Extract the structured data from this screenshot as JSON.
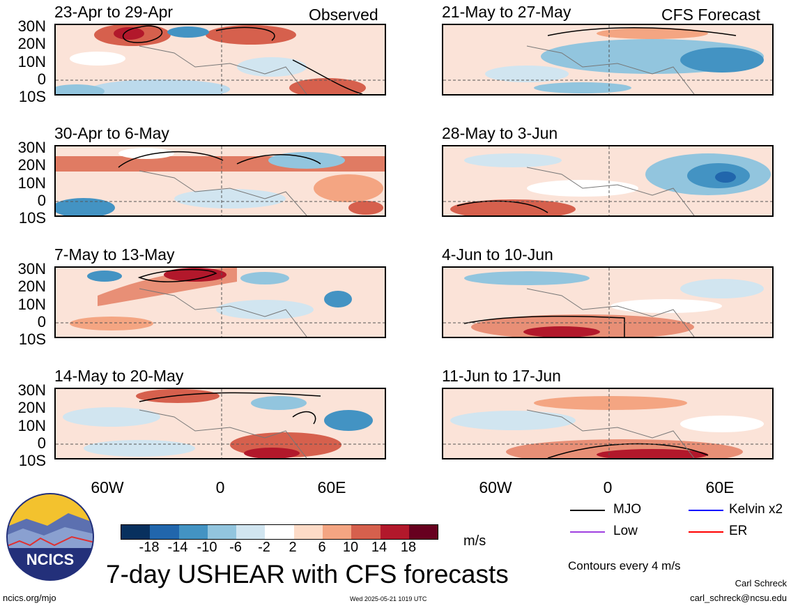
{
  "observed_label": "Observed",
  "forecast_label": "CFS Forecast",
  "panels_left": [
    {
      "title": "23-Apr to 29-Apr"
    },
    {
      "title": "30-Apr to 6-May"
    },
    {
      "title": "7-May to 13-May"
    },
    {
      "title": "14-May to 20-May"
    }
  ],
  "panels_right": [
    {
      "title": "21-May to 27-May"
    },
    {
      "title": "28-May to 3-Jun"
    },
    {
      "title": "4-Jun to 10-Jun"
    },
    {
      "title": "11-Jun to 17-Jun"
    }
  ],
  "lat_labels": [
    "30N",
    "20N",
    "10N",
    "0",
    "10S"
  ],
  "lon_labels": [
    "60W",
    "0",
    "60E"
  ],
  "colorbar": {
    "ticks": [
      "-18",
      "-14",
      "-10",
      "-6",
      "-2",
      "2",
      "6",
      "10",
      "14",
      "18"
    ],
    "units": "m/s",
    "colors": [
      "#08305e",
      "#2166ac",
      "#4393c3",
      "#92c5de",
      "#d1e5f0",
      "#ffffff",
      "#fddbc7",
      "#f4a582",
      "#d6604d",
      "#b2182b",
      "#67001f"
    ]
  },
  "title": "7-day USHEAR with CFS forecasts",
  "legend": {
    "mjo": "MJO",
    "low": "Low",
    "kelvin": "Kelvin x2",
    "er": "ER",
    "contours_note": "Contours every 4 m/s",
    "colors": {
      "mjo": "#000000",
      "low": "#a040e0",
      "kelvin": "#0000ff",
      "er": "#ff0000"
    }
  },
  "logo": {
    "text": "NCICS"
  },
  "footer": {
    "url": "ncics.org/mjo",
    "timestamp": "Wed 2025-05-21 1019 UTC",
    "author": "Carl Schreck",
    "email": "carl_schreck@ncsu.edu"
  }
}
